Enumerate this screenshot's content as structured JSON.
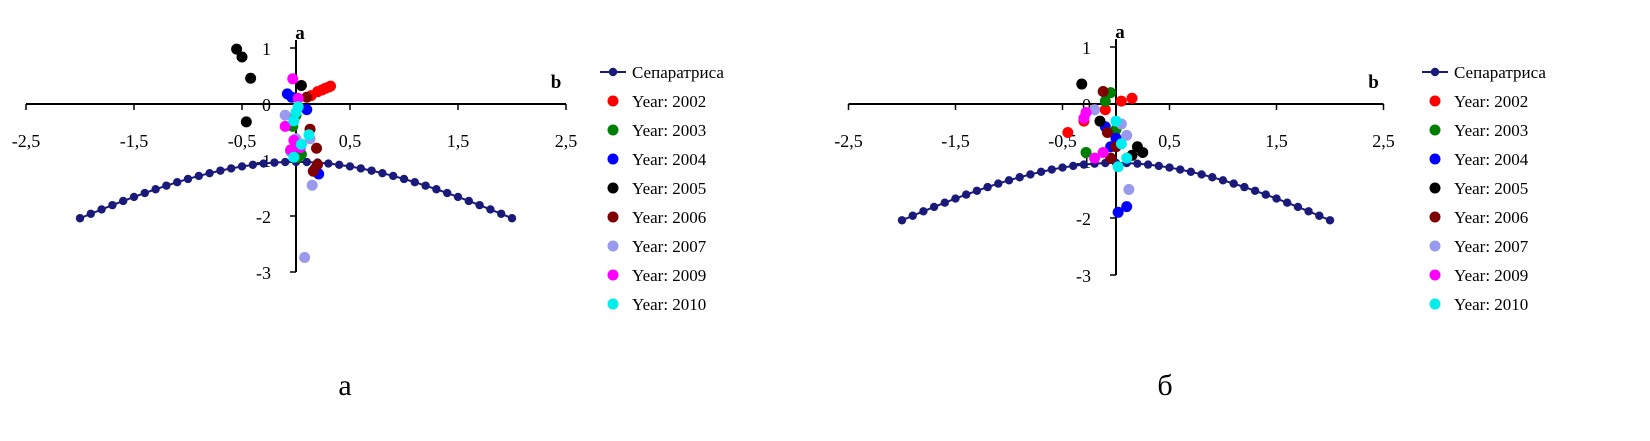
{
  "chart_data": [
    {
      "type": "scatter",
      "panel_label": "а",
      "xlabel": "b",
      "ylabel": "a",
      "xlim": [
        -2.5,
        2.5
      ],
      "ylim": [
        -3,
        1
      ],
      "x_ticks": [
        "-2,5",
        "-1,5",
        "-0,5",
        "0,5",
        "1,5",
        "2,5"
      ],
      "y_ticks": [
        "1",
        "0",
        "-1",
        "-2",
        "-3"
      ],
      "separatrix": {
        "name": "Сепаратриса",
        "color": "#1a1a7a",
        "x_min": -2,
        "x_max": 2,
        "step": 0.1,
        "formula": "a = -sqrt(b^2 + 2.2) + 0.45"
      },
      "series": [
        {
          "name": "Year: 2002",
          "color": "#ff0000",
          "points": [
            [
              0.2,
              0.22
            ],
            [
              0.24,
              0.25
            ],
            [
              0.27,
              0.28
            ],
            [
              0.3,
              0.3
            ],
            [
              0.32,
              0.32
            ],
            [
              0.14,
              0.15
            ]
          ]
        },
        {
          "name": "Year: 2003",
          "color": "#008000",
          "points": [
            [
              0.05,
              -0.9
            ],
            [
              0.02,
              -0.95
            ],
            [
              -0.03,
              -0.4
            ],
            [
              0.0,
              -0.2
            ]
          ]
        },
        {
          "name": "Year: 2004",
          "color": "#0000ff",
          "points": [
            [
              -0.08,
              0.18
            ],
            [
              -0.04,
              0.12
            ],
            [
              0.21,
              -1.25
            ],
            [
              0.18,
              -1.15
            ],
            [
              0.1,
              -0.1
            ]
          ]
        },
        {
          "name": "Year: 2005",
          "color": "#000000",
          "points": [
            [
              -0.55,
              0.98
            ],
            [
              -0.5,
              0.84
            ],
            [
              -0.42,
              0.46
            ],
            [
              -0.46,
              -0.32
            ],
            [
              0.05,
              0.33
            ]
          ]
        },
        {
          "name": "Year: 2006",
          "color": "#7f0000",
          "points": [
            [
              0.1,
              0.12
            ],
            [
              0.19,
              -0.79
            ],
            [
              0.2,
              -1.08
            ],
            [
              0.16,
              -1.2
            ],
            [
              0.13,
              -0.45
            ]
          ]
        },
        {
          "name": "Year: 2007",
          "color": "#9999ee",
          "points": [
            [
              0.08,
              -2.74
            ],
            [
              0.15,
              -1.45
            ],
            [
              -0.1,
              -0.2
            ],
            [
              0.13,
              -0.62
            ],
            [
              0.0,
              -0.62
            ],
            [
              -0.05,
              -0.85
            ]
          ]
        },
        {
          "name": "Year: 2009",
          "color": "#ff00ff",
          "points": [
            [
              -0.03,
              0.45
            ],
            [
              0.02,
              0.1
            ],
            [
              -0.1,
              -0.4
            ],
            [
              -0.02,
              -0.65
            ],
            [
              -0.05,
              -0.82
            ],
            [
              0.04,
              -0.78
            ]
          ]
        },
        {
          "name": "Year: 2010",
          "color": "#00eeee",
          "points": [
            [
              0.02,
              -0.05
            ],
            [
              0.0,
              -0.15
            ],
            [
              -0.02,
              -0.3
            ],
            [
              0.12,
              -0.55
            ],
            [
              -0.02,
              -0.95
            ],
            [
              0.05,
              -0.72
            ]
          ]
        }
      ],
      "legend_position": "right"
    },
    {
      "type": "scatter",
      "panel_label": "б",
      "xlabel": "b",
      "ylabel": "a",
      "xlim": [
        -2.5,
        2.5
      ],
      "ylim": [
        -3,
        1
      ],
      "x_ticks": [
        "-2,5",
        "-1,5",
        "-0,5",
        "0,5",
        "1,5",
        "2,5"
      ],
      "y_ticks": [
        "1",
        "0",
        "-1",
        "-2",
        "-3"
      ],
      "separatrix": {
        "name": "Сепаратриса",
        "color": "#1a1a7a",
        "x_min": -2,
        "x_max": 2,
        "step": 0.1,
        "formula": "a = -sqrt(b^2 + 2.2) + 0.45"
      },
      "series": [
        {
          "name": "Year: 2002",
          "color": "#ff0000",
          "points": [
            [
              -0.45,
              -0.5
            ],
            [
              -0.3,
              -0.3
            ],
            [
              0.15,
              0.1
            ],
            [
              0.05,
              0.05
            ],
            [
              -0.1,
              -0.1
            ]
          ]
        },
        {
          "name": "Year: 2003",
          "color": "#008000",
          "points": [
            [
              -0.28,
              -0.85
            ],
            [
              -0.1,
              0.05
            ],
            [
              -0.05,
              0.2
            ],
            [
              0.0,
              -0.45
            ]
          ]
        },
        {
          "name": "Year: 2004",
          "color": "#0000ff",
          "points": [
            [
              0.02,
              -1.9
            ],
            [
              0.1,
              -1.8
            ],
            [
              -0.1,
              -0.4
            ],
            [
              0.0,
              -0.6
            ],
            [
              -0.05,
              -0.75
            ]
          ]
        },
        {
          "name": "Year: 2005",
          "color": "#000000",
          "points": [
            [
              -0.32,
              0.35
            ],
            [
              0.15,
              -0.9
            ],
            [
              0.2,
              -0.75
            ],
            [
              0.25,
              -0.85
            ],
            [
              -0.15,
              -0.3
            ]
          ]
        },
        {
          "name": "Year: 2006",
          "color": "#7f0000",
          "points": [
            [
              -0.12,
              0.22
            ],
            [
              -0.08,
              -0.5
            ],
            [
              -0.05,
              -0.95
            ],
            [
              0.0,
              -0.75
            ]
          ]
        },
        {
          "name": "Year: 2007",
          "color": "#9999ee",
          "points": [
            [
              0.12,
              -1.5
            ],
            [
              0.05,
              -0.35
            ],
            [
              0.1,
              -0.55
            ],
            [
              -0.2,
              -0.1
            ]
          ]
        },
        {
          "name": "Year: 2009",
          "color": "#ff00ff",
          "points": [
            [
              -0.28,
              -0.15
            ],
            [
              -0.2,
              -0.95
            ],
            [
              -0.12,
              -0.85
            ],
            [
              -0.3,
              -0.25
            ]
          ]
        },
        {
          "name": "Year: 2010",
          "color": "#00eeee",
          "points": [
            [
              0.02,
              -1.1
            ],
            [
              0.05,
              -0.7
            ],
            [
              0.0,
              -0.3
            ],
            [
              0.1,
              -0.95
            ]
          ]
        }
      ],
      "legend_position": "right"
    }
  ]
}
